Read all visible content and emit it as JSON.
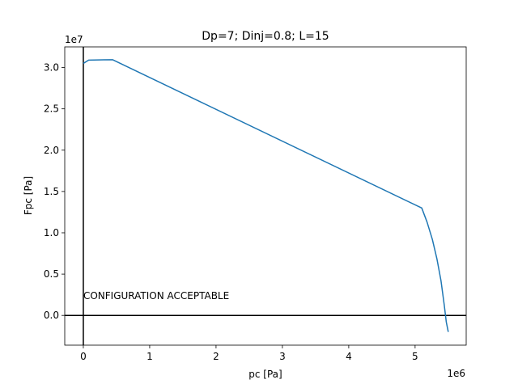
{
  "chart_data": {
    "type": "line",
    "title": "Dp=7; Dinj=0.8; L=15",
    "xlabel": "pc [Pa]",
    "ylabel": "Fpc [Pa]",
    "x_offset_label": "1e6",
    "y_offset_label": "1e7",
    "xlim": [
      -0.28,
      5.77
    ],
    "ylim": [
      -0.36,
      3.25
    ],
    "x_ticks": [
      0,
      1,
      2,
      3,
      4,
      5
    ],
    "x_tick_labels": [
      "0",
      "1",
      "2",
      "3",
      "4",
      "5"
    ],
    "y_ticks": [
      0.0,
      0.5,
      1.0,
      1.5,
      2.0,
      2.5,
      3.0
    ],
    "y_tick_labels": [
      "0.0",
      "0.5",
      "1.0",
      "1.5",
      "2.0",
      "2.5",
      "3.0"
    ],
    "grid": false,
    "series": [
      {
        "color": "#1f77b4",
        "x": [
          0.0,
          0.08,
          0.44,
          5.1,
          5.18,
          5.26,
          5.33,
          5.39,
          5.44,
          5.47,
          5.49,
          5.5
        ],
        "y": [
          3.05,
          3.09,
          3.095,
          1.3,
          1.13,
          0.92,
          0.68,
          0.42,
          0.12,
          -0.08,
          -0.16,
          -0.2
        ]
      }
    ],
    "reference_lines": [
      {
        "orientation": "vertical",
        "value": 0,
        "color": "#000000"
      },
      {
        "orientation": "horizontal",
        "value": 0,
        "color": "#000000"
      }
    ],
    "annotations": [
      {
        "text": "CONFIGURATION ACCEPTABLE",
        "x": 0.0,
        "y": 0.2
      }
    ]
  }
}
